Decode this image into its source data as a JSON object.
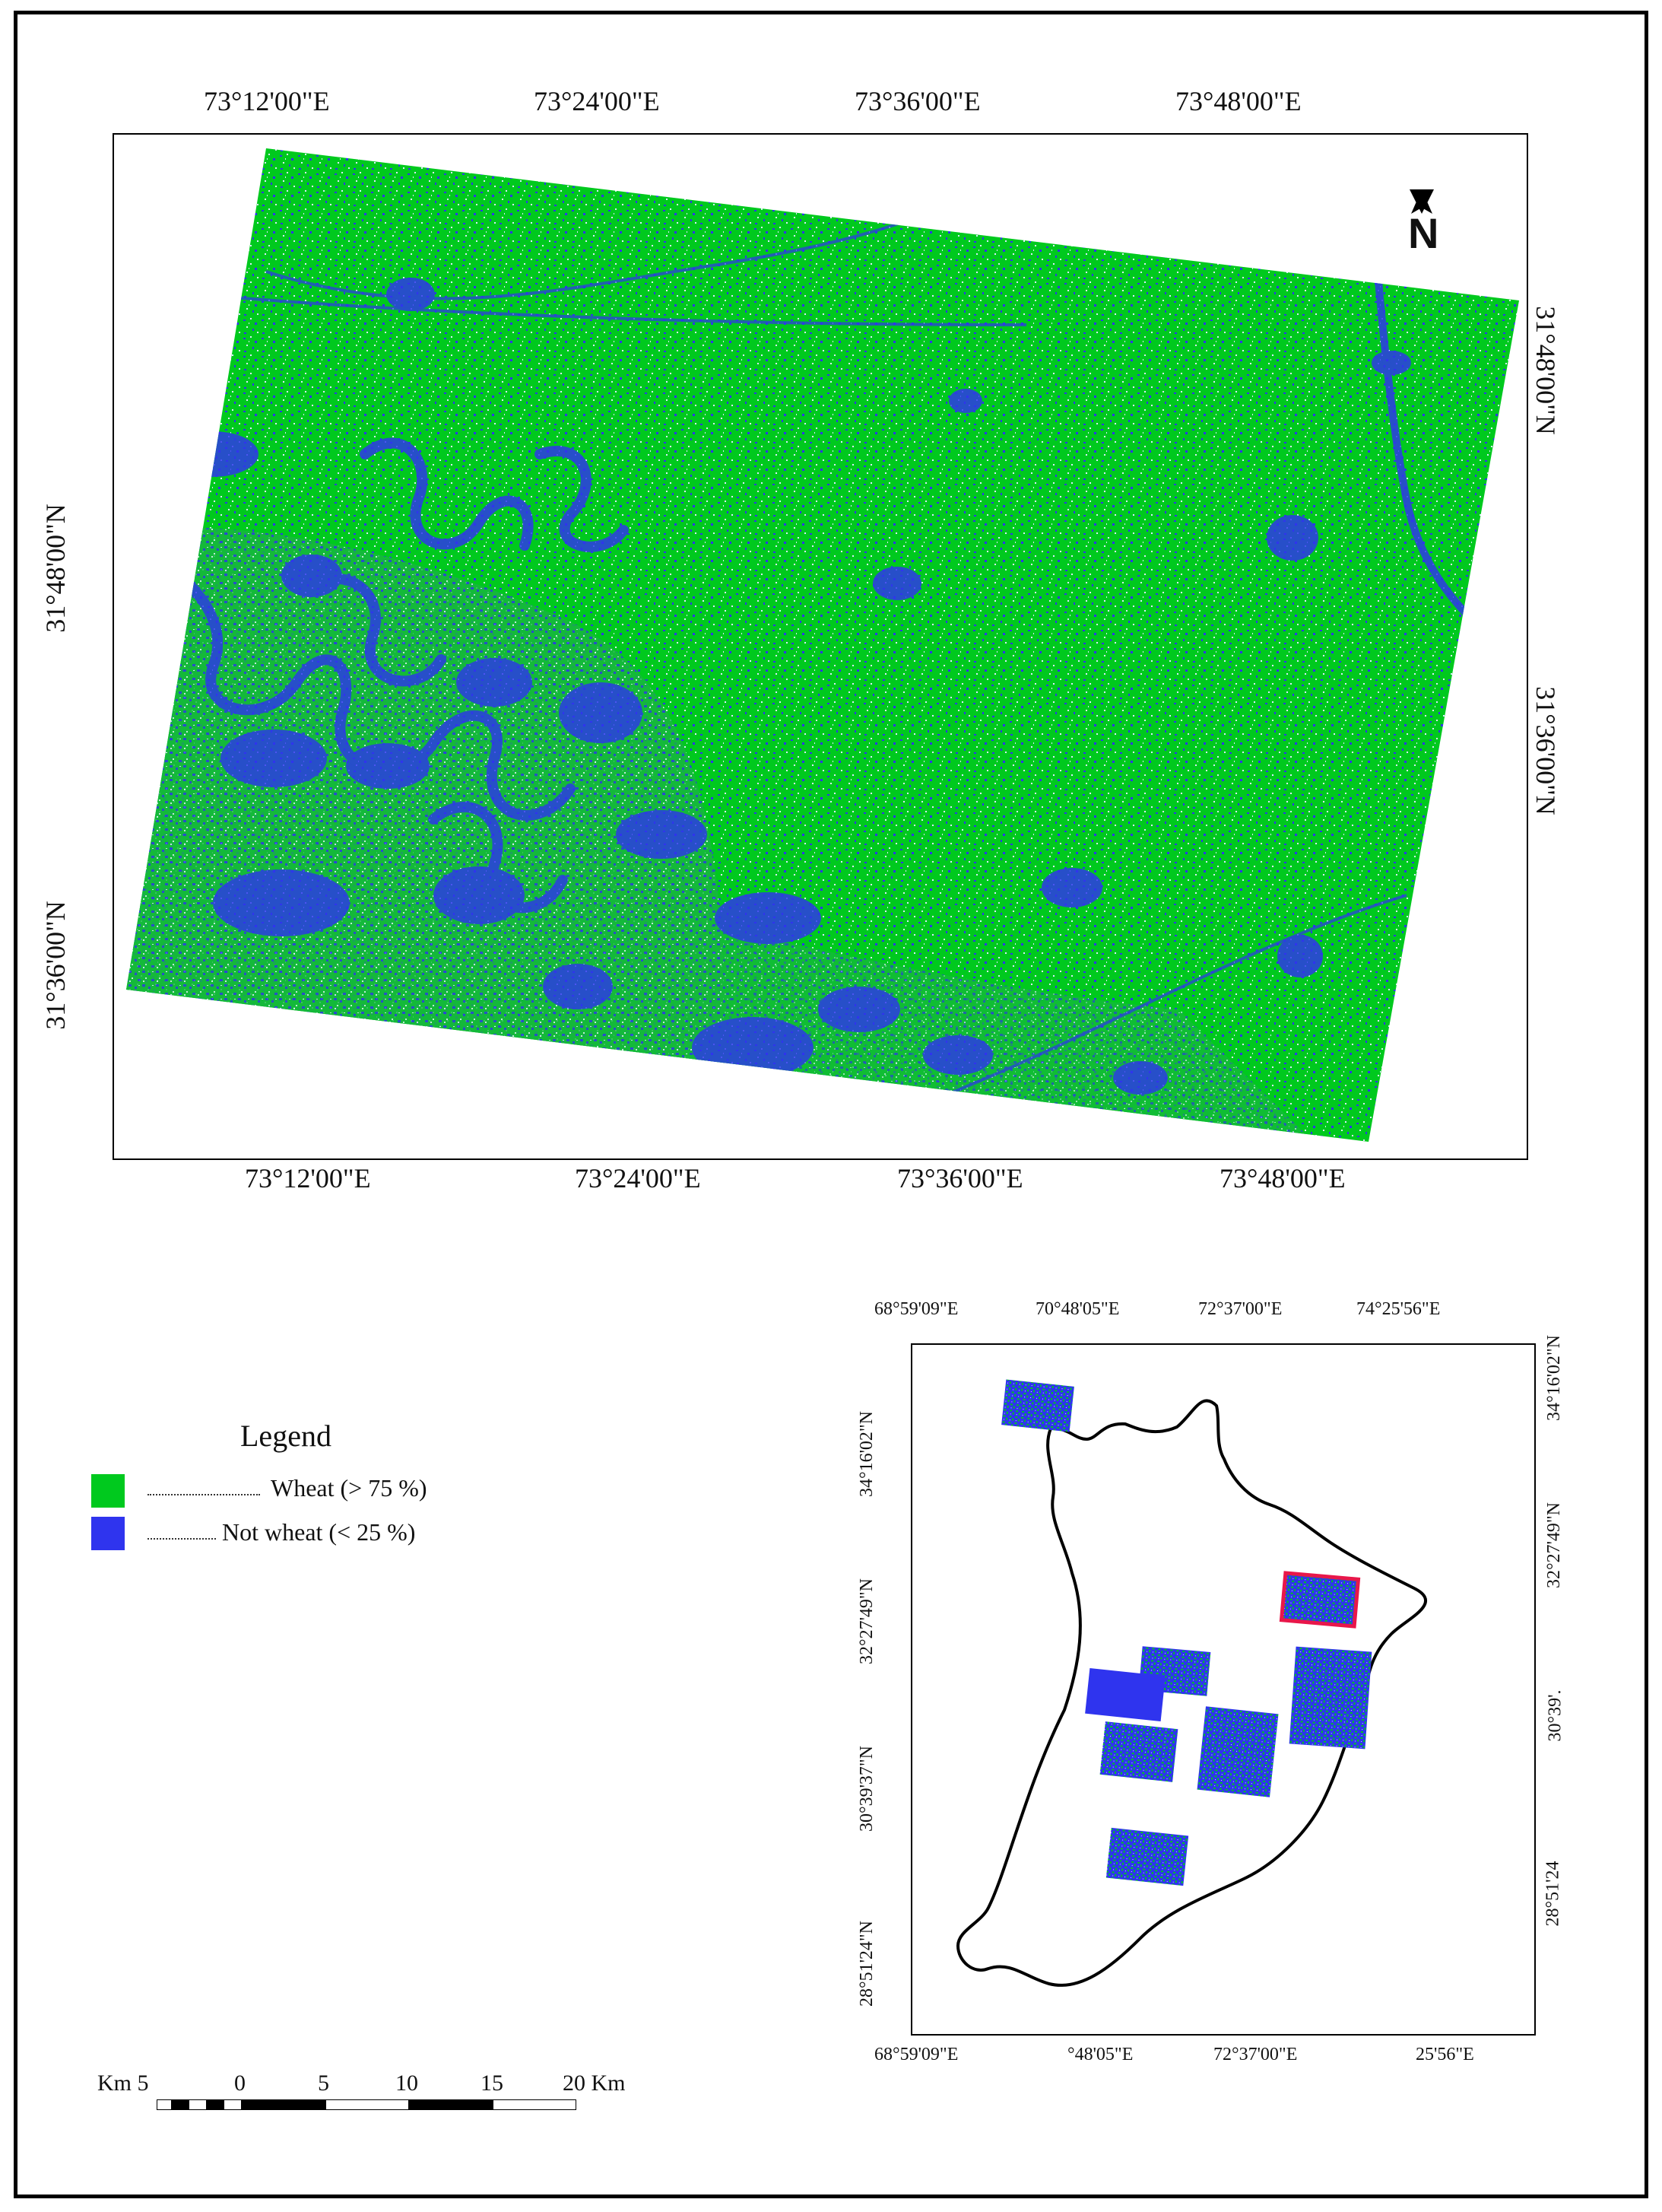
{
  "main_map": {
    "top_lon_labels": [
      "73°12'00\"E",
      "73°24'00\"E",
      "73°36'00\"E",
      "73°48'00\"E"
    ],
    "bottom_lon_labels": [
      "73°12'00\"E",
      "73°24'00\"E",
      "73°36'00\"E",
      "73°48'00\"E"
    ],
    "left_lat_labels": [
      "31°48'00\"N",
      "31°36'00\"N"
    ],
    "right_lat_labels": [
      "31°48'00\"N",
      "31°36'00\"N"
    ],
    "north_arrow_label": "N",
    "colors": {
      "wheat": "#00c91e",
      "not_wheat": "#2f34ee",
      "noise": "#d8ecff"
    }
  },
  "legend": {
    "title": "Legend",
    "items": [
      {
        "label": "Wheat (>   75 %)",
        "color": "#00c91e"
      },
      {
        "label": "Not wheat (<   25 %)",
        "color": "#2f34ee"
      }
    ]
  },
  "scale_bar": {
    "labels": [
      "Km 5",
      "0",
      "5",
      "10",
      "15",
      "20 Km"
    ]
  },
  "inset_map": {
    "top_lon_labels": [
      "68°59'09\"E",
      "70°48'05\"E",
      "72°37'00\"E",
      "74°25'56\"E"
    ],
    "bottom_lon_labels": [
      "68°59'09\"E",
      "°48'05\"E",
      "72°37'00\"E",
      "25'56\"E"
    ],
    "left_lat_labels": [
      "34°16'02\"N",
      "32°27'49\"N",
      "30°39'37\"N",
      "28°51'24\"N"
    ],
    "right_lat_labels": [
      "34°16'02\"N",
      "32°27'49\"N",
      "30°39'.",
      "28°51'24"
    ],
    "highlight_color": "#e8174a"
  }
}
